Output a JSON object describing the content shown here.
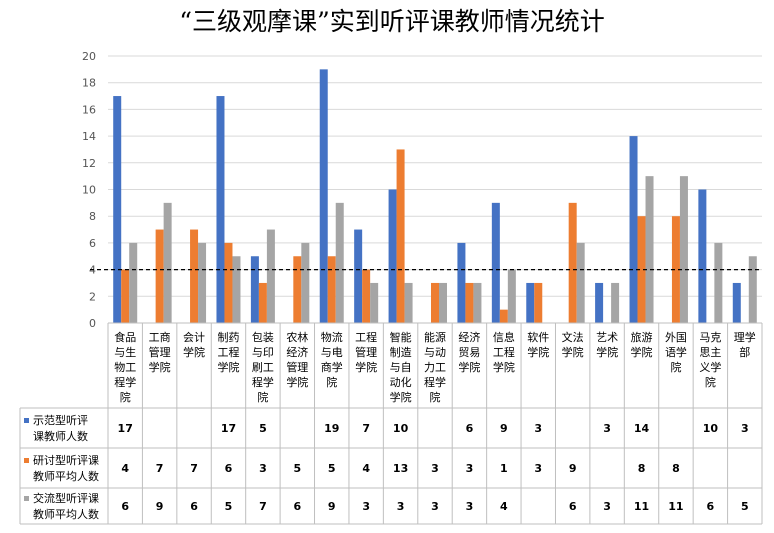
{
  "chart_data": {
    "type": "bar",
    "title": "“三级观摩课”实到听评课教师情况统计",
    "ylim": [
      0,
      20
    ],
    "yticks": [
      0,
      2,
      4,
      6,
      8,
      10,
      12,
      14,
      16,
      18,
      20
    ],
    "reference_line": 4,
    "categories": [
      [
        "食品",
        "与生",
        "物工",
        "程学",
        "院"
      ],
      [
        "工商",
        "管理",
        "学院"
      ],
      [
        "会计",
        "学院"
      ],
      [
        "制药",
        "工程",
        "学院"
      ],
      [
        "包装",
        "与印",
        "刷工",
        "程学",
        "院"
      ],
      [
        "农林",
        "经济",
        "管理",
        "学院"
      ],
      [
        "物流",
        "与电",
        "商学",
        "院"
      ],
      [
        "工程",
        "管理",
        "学院"
      ],
      [
        "智能",
        "制造",
        "与自",
        "动化",
        "学院"
      ],
      [
        "能源",
        "与动",
        "力工",
        "程学",
        "院"
      ],
      [
        "经济",
        "贸易",
        "学院"
      ],
      [
        "信息",
        "工程",
        "学院"
      ],
      [
        "软件",
        "学院"
      ],
      [
        "文法",
        "学院"
      ],
      [
        "艺术",
        "学院"
      ],
      [
        "旅游",
        "学院"
      ],
      [
        "外国",
        "语学",
        "院"
      ],
      [
        "马克",
        "思主",
        "义学",
        "院"
      ],
      [
        "理学",
        "部"
      ]
    ],
    "series": [
      {
        "name": [
          "示范型听评",
          "课教师人数"
        ],
        "color": "#4472C4",
        "values": [
          17,
          null,
          null,
          17,
          5,
          null,
          19,
          7,
          10,
          null,
          6,
          9,
          3,
          null,
          3,
          14,
          null,
          10,
          3
        ]
      },
      {
        "name": [
          "研讨型听评课",
          "教师平均人数"
        ],
        "color": "#ED7D31",
        "values": [
          4,
          7,
          7,
          6,
          3,
          5,
          5,
          4,
          13,
          3,
          3,
          1,
          3,
          9,
          null,
          8,
          8,
          null,
          null
        ]
      },
      {
        "name": [
          "交流型听评课",
          "教师平均人数"
        ],
        "color": "#A5A5A5",
        "values": [
          6,
          9,
          6,
          5,
          7,
          6,
          9,
          3,
          3,
          3,
          3,
          4,
          null,
          6,
          3,
          11,
          11,
          6,
          5
        ]
      }
    ]
  }
}
